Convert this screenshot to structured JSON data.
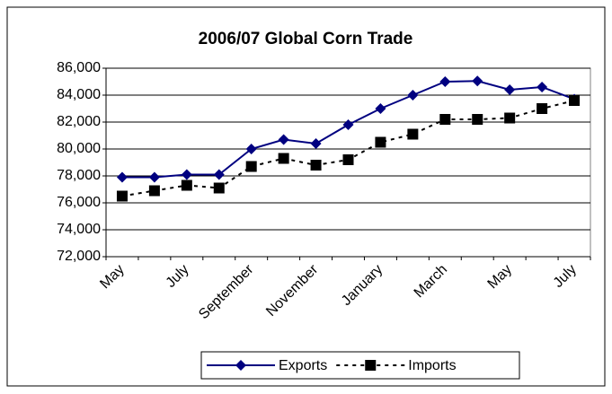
{
  "chart_data": {
    "type": "line",
    "title": "2006/07 Global Corn Trade",
    "categories": [
      "May",
      null,
      "July",
      null,
      "September",
      null,
      "November",
      null,
      "January",
      null,
      "March",
      null,
      "May",
      null,
      "July"
    ],
    "series": [
      {
        "name": "Exports",
        "color": "#000080",
        "marker": "diamond",
        "dash": false,
        "values": [
          77900,
          77900,
          78100,
          78100,
          80000,
          80700,
          80400,
          81800,
          83000,
          84000,
          85000,
          85050,
          84400,
          84600,
          83700
        ]
      },
      {
        "name": "Imports",
        "color": "#000000",
        "marker": "square",
        "dash": true,
        "values": [
          76500,
          76900,
          77300,
          77100,
          78700,
          79300,
          78800,
          79200,
          80500,
          81100,
          82200,
          82200,
          82300,
          83000,
          83600
        ]
      }
    ],
    "ylim": [
      72000,
      86000
    ],
    "yticks": [
      {
        "value": 72000,
        "label": "72,000"
      },
      {
        "value": 74000,
        "label": "74,000"
      },
      {
        "value": 76000,
        "label": "76,000"
      },
      {
        "value": 78000,
        "label": "78,000"
      },
      {
        "value": 80000,
        "label": "80,000"
      },
      {
        "value": 82000,
        "label": "82,000"
      },
      {
        "value": 84000,
        "label": "84,000"
      },
      {
        "value": 86000,
        "label": "86,000"
      }
    ],
    "grid": true,
    "legend": "bottom"
  }
}
